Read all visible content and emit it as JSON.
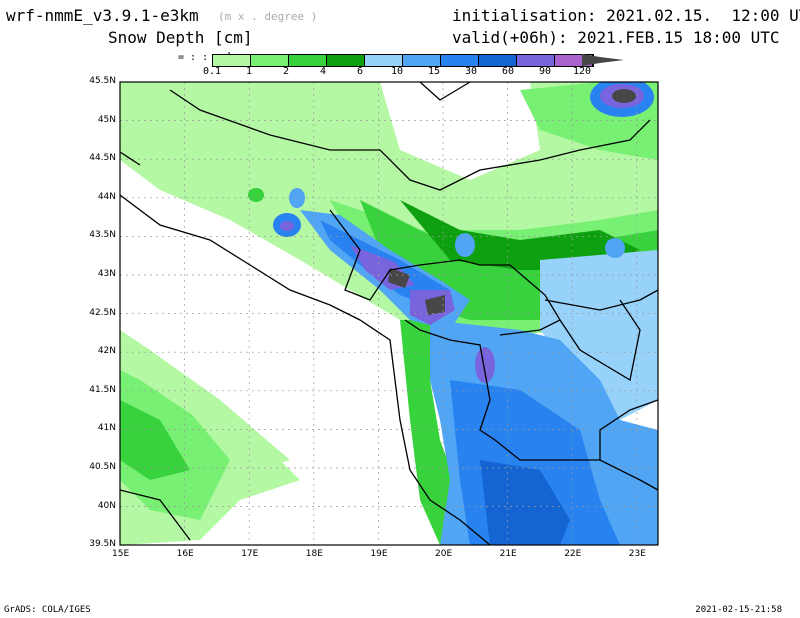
{
  "header": {
    "model": "wrf-nmmE_v3.9.1-e3km",
    "unit_note": "(m x . degree )",
    "variable": "Snow Depth [cm]",
    "initialisation": "initialisation: 2021.02.15.  12:00 UTC",
    "valid": "valid(+06h): 2021.FEB.15 18:00 UTC"
  },
  "colorbar": {
    "labels": [
      "0.1",
      "1",
      "2",
      "4",
      "6",
      "10",
      "15",
      "30",
      "60",
      "90",
      "120"
    ],
    "colors": [
      "#b4f8a4",
      "#78f073",
      "#37d23c",
      "#0fa00f",
      "#96d2fa",
      "#50a5f5",
      "#2882f0",
      "#1464d2",
      "#7864dc",
      "#a864cc"
    ],
    "arrow_color": "#474747"
  },
  "axes": {
    "lon_labels": [
      "15E",
      "16E",
      "17E",
      "18E",
      "19E",
      "20E",
      "21E",
      "22E",
      "23E"
    ],
    "lat_labels": [
      "45.5N",
      "45N",
      "44.5N",
      "44N",
      "43.5N",
      "43N",
      "42.5N",
      "42N",
      "41.5N",
      "41N",
      "40.5N",
      "40N",
      "39.5N"
    ]
  },
  "footer": {
    "left": "GrADS: COLA/IGES",
    "right": "2021-02-15-21:58"
  }
}
